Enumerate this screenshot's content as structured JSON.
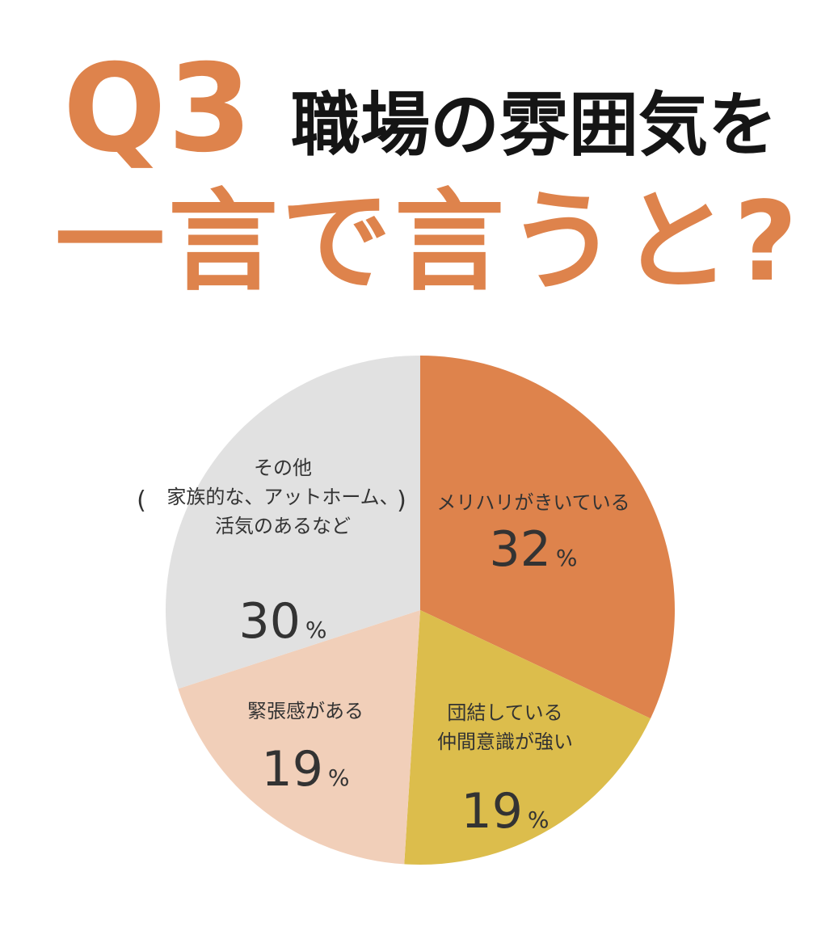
{
  "heading": {
    "q_number": "Q3",
    "line1": "職場の雰囲気を",
    "line2": "一言で言うと?"
  },
  "colors": {
    "accent": "#de834c",
    "title": "#151515",
    "text": "#333333"
  },
  "chart_data": {
    "type": "pie",
    "title": "",
    "unit": "%",
    "slices": [
      {
        "label_lines": [
          "メリハリがきいている"
        ],
        "value": 32,
        "value_text": "32",
        "color": "#de834c"
      },
      {
        "label_lines": [
          "団結している",
          "仲間意識が強い"
        ],
        "value": 19,
        "value_text": "19",
        "color": "#dcbd4c"
      },
      {
        "label_lines": [
          "緊張感がある"
        ],
        "value": 19,
        "value_text": "19",
        "color": "#f1cfb9"
      },
      {
        "label_lines": [
          "その他",
          "家族的な、アットホーム、",
          "活気のあるなど"
        ],
        "value": 30,
        "value_text": "30",
        "color": "#e1e1e1",
        "note_parens": [
          "(",
          ")"
        ]
      }
    ]
  }
}
